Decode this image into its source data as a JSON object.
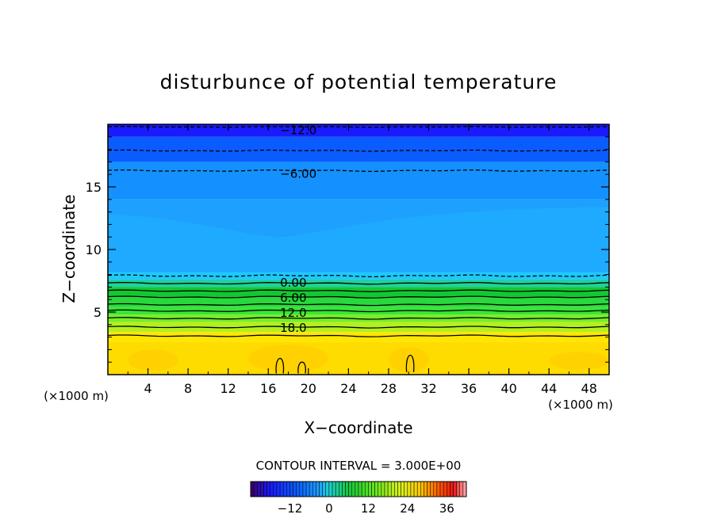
{
  "chart_data": {
    "type": "heatmap",
    "title": "disturbunce of potential temperature",
    "xlabel": "X−coordinate",
    "ylabel": "Z−coordinate",
    "x_unit_left": "(×1000 m)",
    "x_unit_right": "(×1000 m)",
    "xlim": [
      0,
      50
    ],
    "ylim": [
      0,
      20
    ],
    "x_ticks": [
      "4",
      "8",
      "12",
      "16",
      "20",
      "24",
      "28",
      "32",
      "36",
      "40",
      "44",
      "48"
    ],
    "x_tick_values": [
      4,
      8,
      12,
      16,
      20,
      24,
      28,
      32,
      36,
      40,
      44,
      48
    ],
    "y_ticks": [
      "5",
      "10",
      "15"
    ],
    "y_tick_values": [
      5,
      10,
      15
    ],
    "contour_interval_text": "CONTOUR INTERVAL = 3.000E+00",
    "contour_interval": 3.0,
    "contour_labels": [
      {
        "text": "−12.0",
        "value": -12,
        "x": 19,
        "z": 19.6
      },
      {
        "text": "−6.00",
        "value": -6,
        "x": 19,
        "z": 16.1
      },
      {
        "text": "0.00",
        "value": 0,
        "x": 18.5,
        "z": 7.4
      },
      {
        "text": "6.00",
        "value": 6,
        "x": 18.5,
        "z": 6.2
      },
      {
        "text": "12.0",
        "value": 12,
        "x": 18.5,
        "z": 5.0
      },
      {
        "text": "18.0",
        "value": 18,
        "x": 18.5,
        "z": 3.8
      }
    ],
    "colorbar": {
      "min": -24,
      "max": 42,
      "ticks": [
        "−12",
        "0",
        "12",
        "24",
        "36"
      ],
      "tick_values": [
        -12,
        0,
        12,
        24,
        36
      ]
    },
    "colors": {
      "deep_blue": "#1a1aff",
      "blue": "#0a5cff",
      "sky": "#1ea0ff",
      "cyan": "#1ec8ff",
      "green_dark": "#12c832",
      "green": "#36e636",
      "yellow_green": "#b4f01e",
      "yellow": "#ffdc00",
      "orange": "#ffc800"
    }
  }
}
